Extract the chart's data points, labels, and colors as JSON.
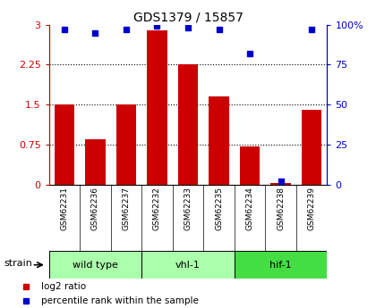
{
  "title": "GDS1379 / 15857",
  "samples": [
    "GSM62231",
    "GSM62236",
    "GSM62237",
    "GSM62232",
    "GSM62233",
    "GSM62235",
    "GSM62234",
    "GSM62238",
    "GSM62239"
  ],
  "log2_ratios": [
    1.5,
    0.85,
    1.5,
    2.9,
    2.25,
    1.65,
    0.72,
    0.04,
    1.4
  ],
  "percentile_ranks": [
    97,
    95,
    97,
    99,
    98,
    97,
    82,
    2,
    97
  ],
  "groups": [
    {
      "name": "wild type",
      "indices": [
        0,
        1,
        2
      ],
      "color": "#aaffaa"
    },
    {
      "name": "vhl-1",
      "indices": [
        3,
        4,
        5
      ],
      "color": "#aaffaa"
    },
    {
      "name": "hif-1",
      "indices": [
        6,
        7,
        8
      ],
      "color": "#44dd44"
    }
  ],
  "bar_color": "#cc0000",
  "dot_color": "#0000cc",
  "left_axis_color": "#cc0000",
  "right_axis_color": "#0000cc",
  "ylim_left": [
    0,
    3
  ],
  "ylim_right": [
    0,
    100
  ],
  "yticks_left": [
    0,
    0.75,
    1.5,
    2.25,
    3
  ],
  "ytick_labels_left": [
    "0",
    "0.75",
    "1.5",
    "2.25",
    "3"
  ],
  "yticks_right": [
    0,
    25,
    50,
    75,
    100
  ],
  "ytick_labels_right": [
    "0",
    "25",
    "50",
    "75",
    "100%"
  ],
  "grid_lines": [
    0.75,
    1.5,
    2.25
  ],
  "background_color": "#ffffff",
  "sample_box_color": "#cccccc",
  "strain_label": "strain",
  "legend_red": "log2 ratio",
  "legend_blue": "percentile rank within the sample"
}
